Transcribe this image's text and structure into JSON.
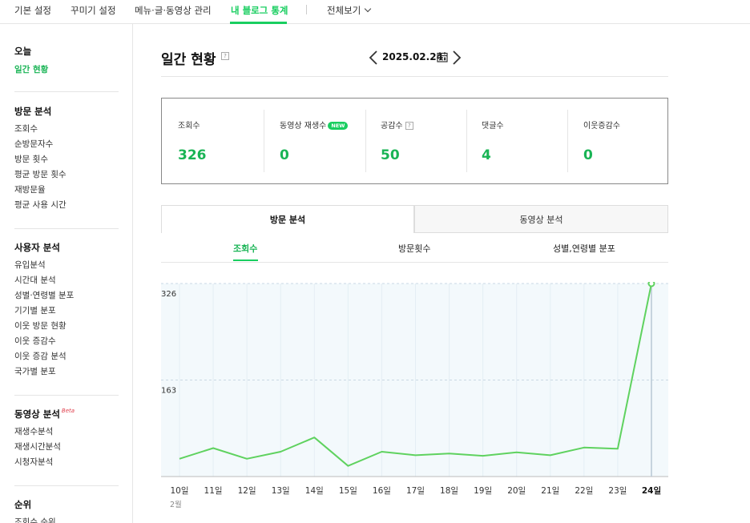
{
  "topnav": {
    "items": [
      {
        "label": "기본 설정"
      },
      {
        "label": "꾸미기 설정"
      },
      {
        "label": "메뉴·글·동영상 관리"
      },
      {
        "label": "내 블로그 통계"
      },
      {
        "label": "전체보기"
      }
    ]
  },
  "sidebar": {
    "today_heading": "오늘",
    "today_item": "일간 현황",
    "visit_heading": "방문 분석",
    "visit_items": [
      "조회수",
      "순방문자수",
      "방문 횟수",
      "평균 방문 횟수",
      "재방문율",
      "평균 사용 시간"
    ],
    "user_heading": "사용자 분석",
    "user_items": [
      "유입분석",
      "시간대 분석",
      "성별·연령별 분포",
      "기기별 분포",
      "이웃 방문 현황",
      "이웃 증감수",
      "이웃 증감 분석",
      "국가별 분포"
    ],
    "video_heading": "동영상 분석",
    "video_beta": "Beta",
    "video_items": [
      "재생수분석",
      "재생시간분석",
      "시청자분석"
    ],
    "rank_heading": "순위",
    "rank_items": [
      "조회수 순위"
    ]
  },
  "main": {
    "title": "일간 현황",
    "help_glyph": "?",
    "date": "2025.02.24."
  },
  "stats": [
    {
      "label": "조회수",
      "value": "326"
    },
    {
      "label": "동영상 재생수",
      "badge": "NEW",
      "value": "0"
    },
    {
      "label": "공감수",
      "help": "?",
      "value": "50"
    },
    {
      "label": "댓글수",
      "value": "4"
    },
    {
      "label": "이웃증감수",
      "value": "0"
    }
  ],
  "tabs": [
    {
      "label": "방문 분석"
    },
    {
      "label": "동영상 분석"
    }
  ],
  "subtabs": [
    {
      "label": "조회수"
    },
    {
      "label": "방문횟수"
    },
    {
      "label": "성별,연령별 분포"
    }
  ],
  "colors": {
    "accent": "#19ce60",
    "line": "#5fd25f",
    "fill": "#f3f9fc"
  },
  "chart_data": {
    "type": "line",
    "categories": [
      "10일",
      "11일",
      "12일",
      "13일",
      "14일",
      "15일",
      "16일",
      "17일",
      "18일",
      "19일",
      "20일",
      "21일",
      "22일",
      "23일",
      "24일"
    ],
    "month_label": "2월",
    "series": [
      {
        "values": [
          30,
          48,
          30,
          42,
          66,
          18,
          42,
          36,
          39,
          35,
          41,
          36,
          49,
          47,
          326
        ]
      }
    ],
    "yticks": [
      163,
      326
    ],
    "ylim": [
      0,
      326
    ],
    "highlight_category": "24일",
    "grid": true
  }
}
